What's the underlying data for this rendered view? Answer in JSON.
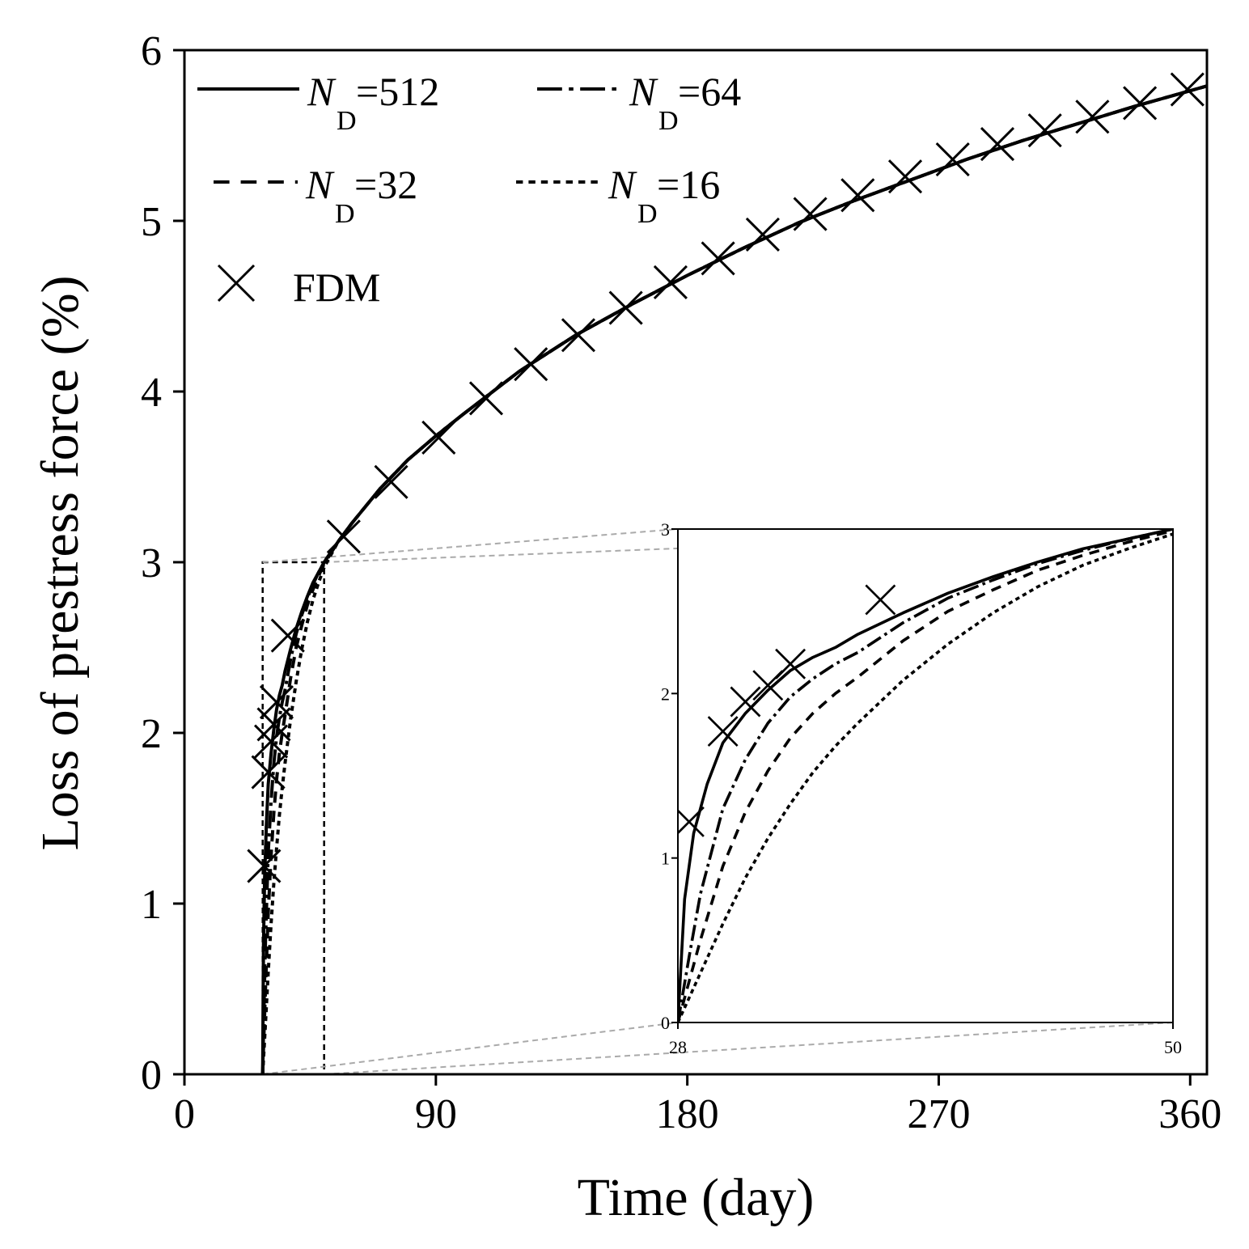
{
  "chart_data": {
    "type": "line",
    "title": "",
    "xlabel": "Time (day)",
    "ylabel": "Loss of prestress force (%)",
    "xlim": [
      0,
      366
    ],
    "ylim": [
      0,
      6
    ],
    "xticks": [
      "0",
      "90",
      "180",
      "270",
      "360"
    ],
    "yticks": [
      "0",
      "1",
      "2",
      "3",
      "4",
      "5",
      "6"
    ],
    "legend": {
      "placement": "top-left",
      "entries": [
        {
          "name": "N",
          "sub": "D",
          "value": "=512",
          "style": "solid"
        },
        {
          "name": "N",
          "sub": "D",
          "value": "=64",
          "style": "dashdot"
        },
        {
          "name": "N",
          "sub": "D",
          "value": "=32",
          "style": "dashed"
        },
        {
          "name": "N",
          "sub": "D",
          "value": "=16",
          "style": "dotted"
        },
        {
          "name": "FDM",
          "style": "marker-x"
        }
      ]
    },
    "series": [
      {
        "name": "N_D=512",
        "style": "solid",
        "x": [
          28,
          28.3,
          28.7,
          29.3,
          30,
          31,
          32,
          33,
          34,
          35,
          36,
          38,
          40,
          42,
          44,
          46,
          48,
          50,
          55,
          60,
          70,
          80,
          90,
          100,
          120,
          140,
          160,
          180,
          200,
          220,
          240,
          260,
          280,
          300,
          320,
          340,
          366
        ],
        "y": [
          0,
          0.75,
          1.15,
          1.45,
          1.7,
          1.88,
          2.02,
          2.14,
          2.22,
          2.28,
          2.36,
          2.49,
          2.61,
          2.71,
          2.8,
          2.88,
          2.94,
          3.0,
          3.12,
          3.23,
          3.43,
          3.6,
          3.74,
          3.87,
          4.12,
          4.33,
          4.51,
          4.68,
          4.84,
          4.99,
          5.12,
          5.24,
          5.36,
          5.47,
          5.57,
          5.67,
          5.79
        ]
      },
      {
        "name": "N_D=64",
        "style": "dashdot",
        "x": [
          28,
          28.5,
          29,
          30,
          31,
          32,
          33,
          34,
          35,
          36,
          38,
          40,
          42,
          44,
          46,
          48,
          50,
          55,
          60,
          70,
          80,
          90,
          100,
          120,
          140,
          160,
          180,
          200,
          220,
          240,
          260,
          280,
          300,
          320,
          340,
          366
        ],
        "y": [
          0,
          0.4,
          0.78,
          1.3,
          1.6,
          1.82,
          1.98,
          2.09,
          2.18,
          2.25,
          2.43,
          2.58,
          2.69,
          2.79,
          2.87,
          2.94,
          3.0,
          3.12,
          3.23,
          3.43,
          3.6,
          3.74,
          3.87,
          4.12,
          4.33,
          4.51,
          4.68,
          4.84,
          4.99,
          5.12,
          5.24,
          5.36,
          5.47,
          5.57,
          5.67,
          5.79
        ]
      },
      {
        "name": "N_D=32",
        "style": "dashed",
        "x": [
          28,
          28.5,
          29,
          30,
          31,
          32,
          33,
          34,
          35,
          36,
          38,
          40,
          42,
          44,
          46,
          48,
          50,
          55,
          60,
          70,
          80,
          90,
          100,
          120,
          140,
          160,
          180,
          200,
          220,
          240,
          260,
          280,
          300,
          320,
          340,
          366
        ],
        "y": [
          0,
          0.25,
          0.5,
          0.95,
          1.28,
          1.53,
          1.73,
          1.88,
          2.0,
          2.1,
          2.32,
          2.5,
          2.63,
          2.75,
          2.84,
          2.92,
          2.99,
          3.12,
          3.23,
          3.43,
          3.6,
          3.74,
          3.87,
          4.12,
          4.33,
          4.51,
          4.68,
          4.84,
          4.99,
          5.12,
          5.24,
          5.36,
          5.47,
          5.57,
          5.67,
          5.79
        ]
      },
      {
        "name": "N_D=16",
        "style": "dotted",
        "x": [
          28,
          29,
          30,
          31,
          32,
          33,
          34,
          35,
          36,
          38,
          40,
          42,
          44,
          46,
          48,
          50,
          55,
          60,
          70,
          80,
          90,
          100,
          120,
          140,
          160,
          180,
          200,
          220,
          240,
          260,
          280,
          300,
          320,
          340,
          366
        ],
        "y": [
          0,
          0.3,
          0.6,
          0.88,
          1.12,
          1.33,
          1.52,
          1.68,
          1.82,
          2.08,
          2.3,
          2.49,
          2.65,
          2.78,
          2.88,
          2.97,
          3.12,
          3.23,
          3.43,
          3.6,
          3.74,
          3.87,
          4.12,
          4.33,
          4.51,
          4.68,
          4.84,
          4.99,
          5.12,
          5.24,
          5.36,
          5.47,
          5.57,
          5.67,
          5.79
        ]
      },
      {
        "name": "FDM",
        "style": "marker-x",
        "x": [
          28.5,
          30,
          31,
          32,
          33,
          37,
          57,
          74,
          91,
          108,
          124,
          141,
          158,
          174,
          191,
          207,
          224,
          241,
          258,
          275,
          291,
          308,
          325,
          342,
          359
        ],
        "y": [
          1.22,
          1.77,
          1.95,
          2.05,
          2.18,
          2.57,
          3.15,
          3.47,
          3.73,
          3.96,
          4.16,
          4.33,
          4.49,
          4.64,
          4.78,
          4.92,
          5.04,
          5.15,
          5.26,
          5.36,
          5.45,
          5.53,
          5.61,
          5.69,
          5.77
        ]
      }
    ],
    "inset": {
      "xlim": [
        28,
        50
      ],
      "ylim": [
        0,
        3
      ],
      "x_tick_labels": [
        "28",
        "50"
      ],
      "y_tick_labels": [
        "0",
        "1",
        "2",
        "3"
      ],
      "zoom_region": {
        "x": [
          28,
          50
        ],
        "y": [
          0,
          3
        ]
      }
    }
  }
}
